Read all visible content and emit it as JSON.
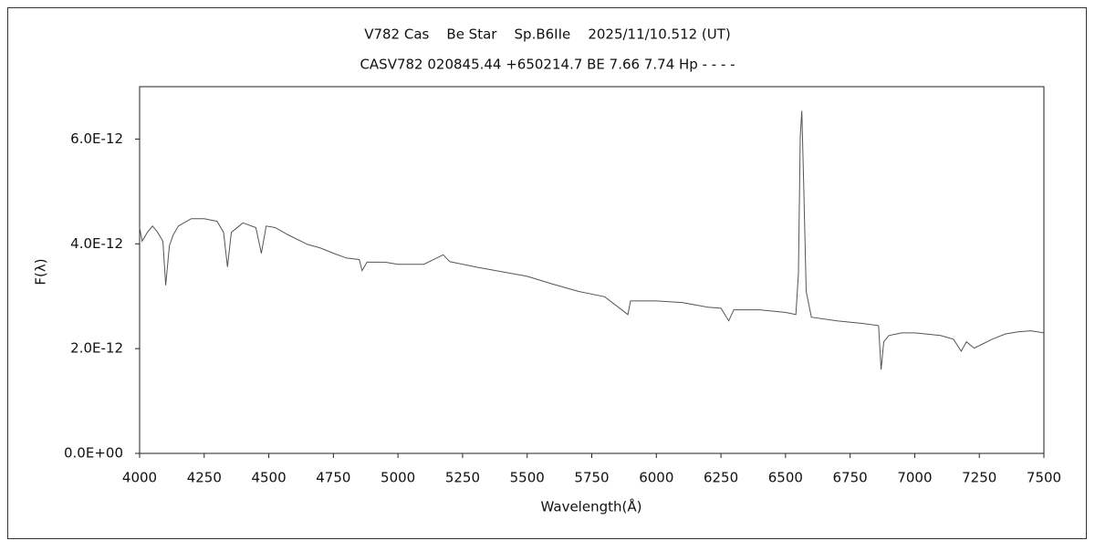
{
  "chart_data": {
    "type": "line",
    "title": "V782 Cas    Be Star    Sp.B6IIe    2025/11/10.512 (UT)",
    "subtitle": "CASV782 020845.44 +650214.7 BE 7.66 7.74 Hp - - - -",
    "x_label": "Wavelength(Å)",
    "y_label": "F(λ)",
    "color": "#555555",
    "x": [
      4000,
      4010,
      4030,
      4050,
      4070,
      4090,
      4101,
      4115,
      4130,
      4150,
      4200,
      4250,
      4300,
      4325,
      4340,
      4355,
      4400,
      4450,
      4471,
      4490,
      4525,
      4575,
      4650,
      4700,
      4750,
      4800,
      4850,
      4861,
      4880,
      4950,
      5000,
      5100,
      5175,
      5200,
      5300,
      5400,
      5500,
      5600,
      5700,
      5800,
      5890,
      5900,
      6000,
      6100,
      6200,
      6250,
      6280,
      6300,
      6400,
      6500,
      6540,
      6550,
      6557,
      6563,
      6570,
      6580,
      6600,
      6700,
      6800,
      6860,
      6870,
      6880,
      6900,
      6950,
      7000,
      7100,
      7150,
      7180,
      7200,
      7230,
      7260,
      7300,
      7350,
      7400,
      7450,
      7500
    ],
    "values": [
      4.31e-12,
      4.05e-12,
      4.22e-12,
      4.34e-12,
      4.22e-12,
      4.05e-12,
      3.21e-12,
      3.96e-12,
      4.17e-12,
      4.34e-12,
      4.48e-12,
      4.48e-12,
      4.43e-12,
      4.22e-12,
      3.56e-12,
      4.22e-12,
      4.4e-12,
      4.31e-12,
      3.82e-12,
      4.34e-12,
      4.31e-12,
      4.17e-12,
      3.99e-12,
      3.92e-12,
      3.82e-12,
      3.73e-12,
      3.7e-12,
      3.49e-12,
      3.65e-12,
      3.65e-12,
      3.61e-12,
      3.61e-12,
      3.79e-12,
      3.66e-12,
      3.56e-12,
      3.47e-12,
      3.38e-12,
      3.23e-12,
      3.09e-12,
      2.99e-12,
      2.65e-12,
      2.91e-12,
      2.91e-12,
      2.88e-12,
      2.79e-12,
      2.77e-12,
      2.53e-12,
      2.74e-12,
      2.74e-12,
      2.69e-12,
      2.65e-12,
      3.44e-12,
      6.05e-12,
      6.54e-12,
      5.18e-12,
      3.09e-12,
      2.6e-12,
      2.53e-12,
      2.48e-12,
      2.44e-12,
      1.6e-12,
      2.13e-12,
      2.25e-12,
      2.3e-12,
      2.3e-12,
      2.25e-12,
      2.18e-12,
      1.95e-12,
      2.13e-12,
      2.01e-12,
      2.08e-12,
      2.18e-12,
      2.28e-12,
      2.32e-12,
      2.34e-12,
      2.3e-12
    ],
    "xlim": [
      4000,
      7500
    ],
    "xticks": [
      4000,
      4250,
      4500,
      4750,
      5000,
      5250,
      5500,
      5750,
      6000,
      6250,
      6500,
      6750,
      7000,
      7250,
      7500
    ],
    "ylim": [
      0,
      7e-12
    ],
    "yticks": [
      {
        "value": 0,
        "label": "0.0E+00"
      },
      {
        "value": 2e-12,
        "label": "2.0E-12"
      },
      {
        "value": 4e-12,
        "label": "4.0E-12"
      },
      {
        "value": 6e-12,
        "label": "6.0E-12"
      }
    ]
  }
}
